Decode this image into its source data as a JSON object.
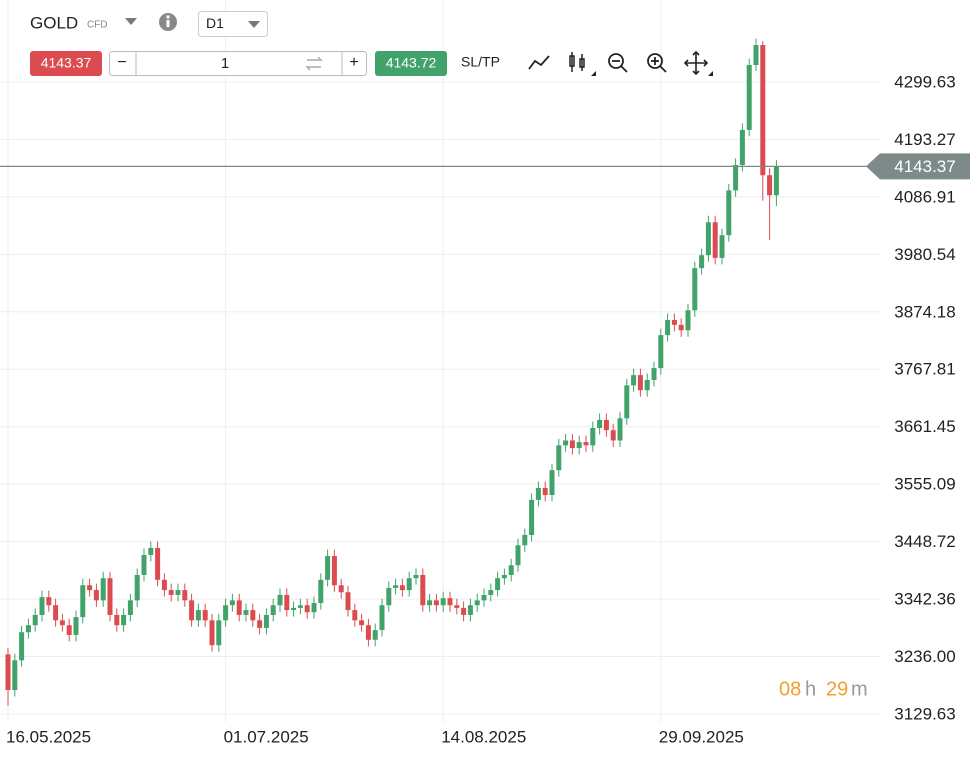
{
  "toolbar": {
    "symbol": "GOLD",
    "symbol_type": "CFD",
    "timeframe": "D1",
    "sell": "4143.37",
    "quantity": "1",
    "buy": "4143.72",
    "sl_tp": "SL/TP"
  },
  "timer": [
    "08",
    "h",
    "29",
    "m"
  ],
  "chart_data": {
    "type": "candlestick",
    "categories": [
      "16.05.2025",
      null,
      null,
      null,
      null,
      null,
      null,
      null,
      null,
      null,
      null,
      null,
      null,
      null,
      null,
      null,
      null,
      null,
      null,
      null,
      null,
      null,
      null,
      null,
      null,
      null,
      null,
      null,
      null,
      null,
      null,
      null,
      "01.07.2025",
      null,
      null,
      null,
      null,
      null,
      null,
      null,
      null,
      null,
      null,
      null,
      null,
      null,
      null,
      null,
      null,
      null,
      null,
      null,
      null,
      null,
      null,
      null,
      null,
      null,
      null,
      null,
      null,
      null,
      null,
      null,
      "14.08.2025",
      null,
      null,
      null,
      null,
      null,
      null,
      null,
      null,
      null,
      null,
      null,
      null,
      null,
      null,
      null,
      null,
      null,
      null,
      null,
      null,
      null,
      null,
      null,
      null,
      null,
      null,
      null,
      null,
      null,
      null,
      null,
      "29.09.2025",
      null,
      null,
      null,
      null,
      null,
      null,
      null,
      null,
      null,
      null,
      null,
      null,
      null,
      null,
      null,
      null,
      null
    ],
    "open": [
      3240,
      3174,
      3229,
      3281,
      3294,
      3313,
      3346,
      3331,
      3303,
      3294,
      3276,
      3309,
      3368,
      3359,
      3340,
      3381,
      3313,
      3294,
      3313,
      3340,
      3387,
      3424,
      3437,
      3378,
      3359,
      3350,
      3359,
      3340,
      3303,
      3322,
      3303,
      3257,
      3303,
      3331,
      3340,
      3313,
      3322,
      3303,
      3289,
      3313,
      3331,
      3350,
      3322,
      3326,
      3331,
      3318,
      3335,
      3378,
      3422,
      3368,
      3355,
      3322,
      3303,
      3294,
      3267,
      3285,
      3331,
      3363,
      3368,
      3359,
      3381,
      3387,
      3331,
      3340,
      3331,
      3344,
      3331,
      3326,
      3313,
      3331,
      3340,
      3350,
      3359,
      3381,
      3387,
      3405,
      3442,
      3461,
      3526,
      3548,
      3535,
      3581,
      3627,
      3636,
      3622,
      3633,
      3627,
      3659,
      3674,
      3655,
      3636,
      3677,
      3738,
      3757,
      3729,
      3748,
      3770,
      3831,
      3859,
      3850,
      3840,
      3877,
      3955,
      3979,
      4040,
      3974,
      4016,
      4099,
      4146,
      4211,
      4331,
      4368,
      4127,
      4090
    ],
    "high": [
      3252,
      3241,
      3293,
      3306,
      3325,
      3358,
      3358,
      3343,
      3315,
      3306,
      3321,
      3380,
      3380,
      3371,
      3393,
      3393,
      3325,
      3325,
      3352,
      3399,
      3436,
      3449,
      3449,
      3390,
      3371,
      3371,
      3371,
      3352,
      3334,
      3334,
      3315,
      3315,
      3343,
      3352,
      3352,
      3334,
      3334,
      3315,
      3325,
      3343,
      3362,
      3362,
      3338,
      3343,
      3343,
      3347,
      3390,
      3434,
      3434,
      3380,
      3367,
      3334,
      3315,
      3306,
      3297,
      3343,
      3375,
      3380,
      3380,
      3393,
      3399,
      3399,
      3352,
      3352,
      3356,
      3356,
      3343,
      3338,
      3343,
      3352,
      3362,
      3371,
      3393,
      3399,
      3417,
      3454,
      3473,
      3538,
      3560,
      3560,
      3593,
      3639,
      3648,
      3648,
      3645,
      3645,
      3671,
      3686,
      3686,
      3667,
      3689,
      3750,
      3769,
      3769,
      3760,
      3782,
      3843,
      3871,
      3871,
      3862,
      3889,
      3967,
      3991,
      4052,
      4052,
      4028,
      4111,
      4158,
      4223,
      4343,
      4380,
      4375,
      4140,
      4155
    ],
    "low": [
      3145,
      3162,
      3217,
      3269,
      3282,
      3301,
      3319,
      3291,
      3282,
      3264,
      3264,
      3297,
      3347,
      3328,
      3328,
      3301,
      3282,
      3282,
      3301,
      3328,
      3375,
      3412,
      3366,
      3347,
      3338,
      3338,
      3328,
      3291,
      3291,
      3291,
      3245,
      3245,
      3291,
      3319,
      3301,
      3301,
      3291,
      3277,
      3277,
      3301,
      3319,
      3310,
      3310,
      3314,
      3306,
      3306,
      3323,
      3366,
      3356,
      3343,
      3310,
      3291,
      3282,
      3255,
      3255,
      3273,
      3319,
      3351,
      3347,
      3347,
      3369,
      3319,
      3319,
      3319,
      3319,
      3319,
      3314,
      3301,
      3301,
      3319,
      3328,
      3338,
      3347,
      3369,
      3375,
      3393,
      3430,
      3449,
      3514,
      3523,
      3523,
      3569,
      3615,
      3610,
      3610,
      3615,
      3615,
      3647,
      3643,
      3624,
      3624,
      3665,
      3726,
      3717,
      3717,
      3736,
      3758,
      3819,
      3838,
      3828,
      3828,
      3865,
      3943,
      3967,
      3962,
      3962,
      4004,
      4087,
      4134,
      4199,
      4320,
      4080,
      4007,
      4070
    ],
    "close": [
      3174,
      3229,
      3281,
      3294,
      3313,
      3346,
      3331,
      3303,
      3294,
      3276,
      3309,
      3368,
      3359,
      3340,
      3381,
      3313,
      3294,
      3313,
      3340,
      3387,
      3424,
      3437,
      3378,
      3359,
      3350,
      3359,
      3340,
      3303,
      3322,
      3303,
      3257,
      3303,
      3331,
      3340,
      3313,
      3322,
      3303,
      3289,
      3313,
      3331,
      3350,
      3322,
      3326,
      3331,
      3318,
      3335,
      3378,
      3422,
      3368,
      3355,
      3322,
      3303,
      3294,
      3267,
      3285,
      3331,
      3363,
      3368,
      3359,
      3381,
      3387,
      3331,
      3340,
      3331,
      3344,
      3331,
      3326,
      3313,
      3331,
      3340,
      3350,
      3359,
      3381,
      3387,
      3405,
      3442,
      3461,
      3526,
      3548,
      3535,
      3581,
      3627,
      3636,
      3622,
      3633,
      3627,
      3659,
      3674,
      3655,
      3636,
      3677,
      3738,
      3757,
      3729,
      3748,
      3770,
      3831,
      3859,
      3850,
      3840,
      3877,
      3955,
      3979,
      4040,
      3974,
      4016,
      4099,
      4146,
      4211,
      4331,
      4368,
      4127,
      4090,
      4143.37
    ],
    "current_price": 4143.37,
    "up_color": "#41a36a",
    "down_color": "#dc4b4f",
    "ylim": [
      3114.8,
      4451.4
    ],
    "yticks": [
      4299.63,
      4193.27,
      4086.91,
      3980.54,
      3874.18,
      3767.81,
      3661.45,
      3555.09,
      3448.72,
      3342.36,
      {
        "value": 3236,
        "label": "3236.00"
      },
      3129.63
    ],
    "grid": true
  }
}
